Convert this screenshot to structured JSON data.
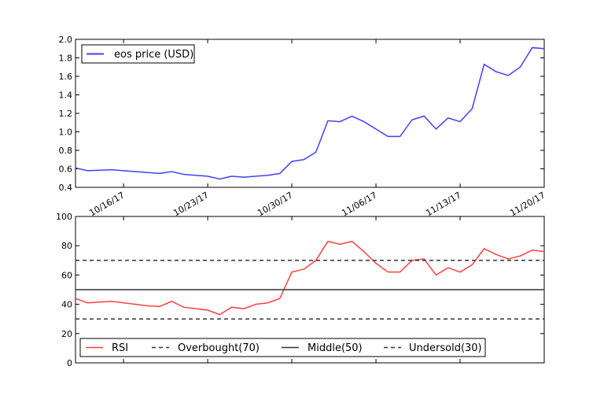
{
  "chart_data": [
    {
      "type": "line",
      "title": "",
      "xlabel": "",
      "ylabel": "",
      "x_start": "10/09/17",
      "x_tick_labels": [
        "10/16/17",
        "10/23/17",
        "10/30/17",
        "11/06/17",
        "11/13/17",
        "11/20/17"
      ],
      "x_tick_positions": [
        4,
        11,
        18,
        25,
        32,
        39
      ],
      "xlim": [
        0,
        39
      ],
      "ylim": [
        0.4,
        2.0
      ],
      "y_ticks": [
        "0.4",
        "0.6",
        "0.8",
        "1.0",
        "1.2",
        "1.4",
        "1.6",
        "1.8",
        "2.0"
      ],
      "legend": {
        "position": "top-left"
      },
      "series": [
        {
          "name": "eos price (USD)",
          "color": "#4040ff",
          "values": [
            0.61,
            0.58,
            0.585,
            0.59,
            0.58,
            0.57,
            0.56,
            0.55,
            0.57,
            0.54,
            0.53,
            0.52,
            0.49,
            0.52,
            0.51,
            0.52,
            0.53,
            0.55,
            0.68,
            0.7,
            0.78,
            1.12,
            1.11,
            1.17,
            1.11,
            1.03,
            0.95,
            0.95,
            1.13,
            1.17,
            1.03,
            1.15,
            1.11,
            1.25,
            1.73,
            1.65,
            1.61,
            1.7,
            1.91,
            1.9
          ]
        }
      ]
    },
    {
      "type": "line",
      "title": "",
      "xlabel": "",
      "ylabel": "",
      "xlim": [
        0,
        39
      ],
      "ylim": [
        0,
        100
      ],
      "y_ticks": [
        "0",
        "20",
        "40",
        "60",
        "80",
        "100"
      ],
      "legend": {
        "position": "bottom"
      },
      "series": [
        {
          "name": "RSI",
          "color": "#ff4040",
          "style": "solid",
          "values": [
            44,
            41,
            41.5,
            42,
            41,
            40,
            39,
            38.5,
            42,
            38,
            37,
            36,
            33,
            38,
            37,
            40,
            41,
            44,
            62,
            64,
            70,
            83,
            81,
            83,
            76,
            68,
            62,
            62,
            70,
            71,
            60,
            65,
            62,
            67,
            78,
            74,
            71,
            73,
            77,
            76
          ]
        },
        {
          "name": "Overbought(70)",
          "color": "#333333",
          "style": "dashed",
          "constant": 70
        },
        {
          "name": "Middle(50)",
          "color": "#333333",
          "style": "solid",
          "constant": 50
        },
        {
          "name": "Undersold(30)",
          "color": "#333333",
          "style": "dashed",
          "constant": 30
        }
      ]
    }
  ]
}
